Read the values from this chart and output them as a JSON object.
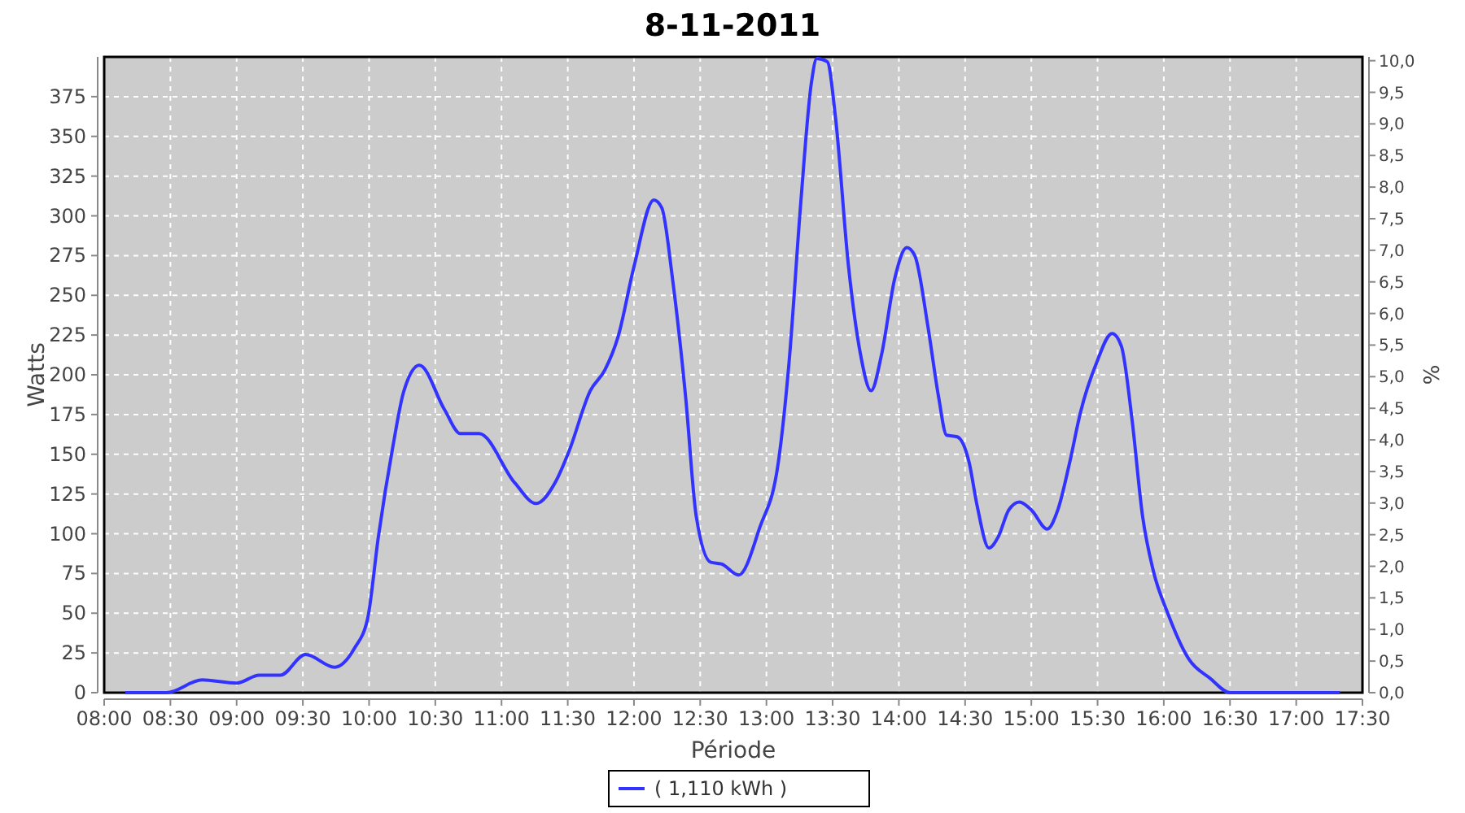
{
  "chart_data": {
    "type": "line",
    "title": "8-11-2011",
    "xlabel": "Période",
    "ylabel": "Watts",
    "y2label": "%",
    "x": [
      8.16,
      8.47,
      8.74,
      9.0,
      9.17,
      9.33,
      9.52,
      9.74,
      9.89,
      9.99,
      10.07,
      10.18,
      10.26,
      10.38,
      10.57,
      10.69,
      10.83,
      11.1,
      11.26,
      11.41,
      11.51,
      11.67,
      11.78,
      11.88,
      12.0,
      12.15,
      12.21,
      12.29,
      12.39,
      12.47,
      12.58,
      12.66,
      12.79,
      12.95,
      13.09,
      13.17,
      13.26,
      13.34,
      13.38,
      13.46,
      13.52,
      13.62,
      13.71,
      13.79,
      13.87,
      13.97,
      14.06,
      14.12,
      14.22,
      14.3,
      14.36,
      14.44,
      14.53,
      14.59,
      14.68,
      14.75,
      14.83,
      14.91,
      15.0,
      15.12,
      15.2,
      15.29,
      15.37,
      15.49,
      15.61,
      15.68,
      15.76,
      15.84,
      15.92,
      16.03,
      16.19,
      16.35,
      16.5,
      17.33
    ],
    "series": [
      {
        "name": "( 1,110 kWh )",
        "color": "#3333ff",
        "values": [
          0,
          0,
          8,
          6,
          11,
          11,
          24,
          16,
          28,
          47,
          98,
          155,
          189,
          206,
          178,
          163,
          163,
          132,
          119,
          133,
          152,
          190,
          203,
          224,
          268,
          310,
          305,
          261,
          186,
          111,
          82,
          81,
          74,
          104,
          145,
          207,
          309,
          384,
          399,
          397,
          363,
          268,
          213,
          190,
          213,
          261,
          280,
          275,
          230,
          186,
          162,
          161,
          145,
          118,
          91,
          98,
          115,
          120,
          115,
          103,
          115,
          145,
          176,
          207,
          226,
          218,
          172,
          111,
          77,
          50,
          21,
          9,
          0,
          0
        ]
      }
    ],
    "xlim": [
      8,
      17.5
    ],
    "xticks": [
      {
        "value": 8,
        "label": "08:00"
      },
      {
        "value": 8.5,
        "label": "08:30"
      },
      {
        "value": 9,
        "label": "09:00"
      },
      {
        "value": 9.5,
        "label": "09:30"
      },
      {
        "value": 10,
        "label": "10:00"
      },
      {
        "value": 10.5,
        "label": "10:30"
      },
      {
        "value": 11,
        "label": "11:00"
      },
      {
        "value": 11.5,
        "label": "11:30"
      },
      {
        "value": 12,
        "label": "12:00"
      },
      {
        "value": 12.5,
        "label": "12:30"
      },
      {
        "value": 13,
        "label": "13:00"
      },
      {
        "value": 13.5,
        "label": "13:30"
      },
      {
        "value": 14,
        "label": "14:00"
      },
      {
        "value": 14.5,
        "label": "14:30"
      },
      {
        "value": 15,
        "label": "15:00"
      },
      {
        "value": 15.5,
        "label": "15:30"
      },
      {
        "value": 16,
        "label": "16:00"
      },
      {
        "value": 16.5,
        "label": "16:30"
      },
      {
        "value": 17,
        "label": "17:00"
      },
      {
        "value": 17.5,
        "label": "17:30"
      }
    ],
    "ylim": [
      0,
      400
    ],
    "yticks": [
      0,
      25,
      50,
      75,
      100,
      125,
      150,
      175,
      200,
      225,
      250,
      275,
      300,
      325,
      350,
      375
    ],
    "y2lim": [
      0,
      10.06
    ],
    "y2ticks": [
      {
        "value": 0,
        "label": "0,0"
      },
      {
        "value": 0.5,
        "label": "0,5"
      },
      {
        "value": 1,
        "label": "1,0"
      },
      {
        "value": 1.5,
        "label": "1,5"
      },
      {
        "value": 2,
        "label": "2,0"
      },
      {
        "value": 2.5,
        "label": "2,5"
      },
      {
        "value": 3,
        "label": "3,0"
      },
      {
        "value": 3.5,
        "label": "3,5"
      },
      {
        "value": 4,
        "label": "4,0"
      },
      {
        "value": 4.5,
        "label": "4,5"
      },
      {
        "value": 5,
        "label": "5,0"
      },
      {
        "value": 5.5,
        "label": "5,5"
      },
      {
        "value": 6,
        "label": "6,0"
      },
      {
        "value": 6.5,
        "label": "6,5"
      },
      {
        "value": 7,
        "label": "7,0"
      },
      {
        "value": 7.5,
        "label": "7,5"
      },
      {
        "value": 8,
        "label": "8,0"
      },
      {
        "value": 8.5,
        "label": "8,5"
      },
      {
        "value": 9,
        "label": "9,0"
      },
      {
        "value": 9.5,
        "label": "9,5"
      },
      {
        "value": 10,
        "label": "10,0"
      }
    ],
    "grid": true,
    "legend": "bottom",
    "line_style": "solid"
  }
}
